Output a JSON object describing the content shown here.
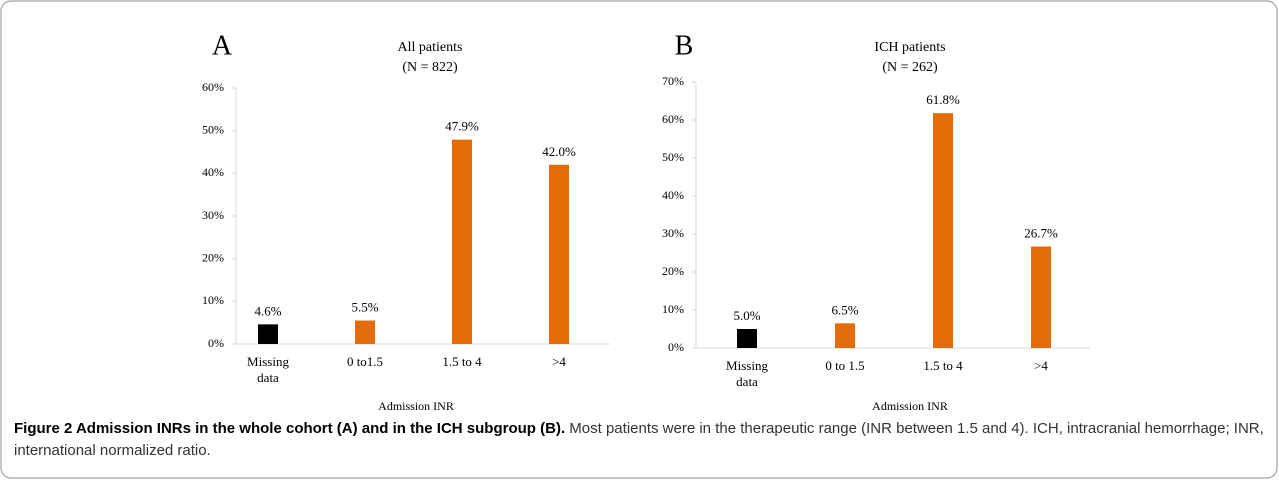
{
  "chart_data": [
    {
      "type": "bar",
      "panel_label": "A",
      "title": "All patients",
      "subtitle": "(N = 822)",
      "x_label": "Admission INR",
      "categories": [
        "Missing data",
        "0 to1.5",
        "1.5 to 4",
        ">4"
      ],
      "values": [
        4.6,
        5.5,
        47.9,
        42.0
      ],
      "value_labels": [
        "4.6%",
        "5.5%",
        "47.9%",
        "42.0%"
      ],
      "colors": [
        "#000000",
        "#e36c09",
        "#e36c09",
        "#e36c09"
      ],
      "ylim": [
        0,
        60
      ],
      "yticks": [
        {
          "value": 0,
          "label": "0%"
        },
        {
          "value": 10,
          "label": "10%"
        },
        {
          "value": 20,
          "label": "20%"
        },
        {
          "value": 30,
          "label": "30%"
        },
        {
          "value": 40,
          "label": "40%"
        },
        {
          "value": 50,
          "label": "50%"
        },
        {
          "value": 60,
          "label": "60%"
        }
      ]
    },
    {
      "type": "bar",
      "panel_label": "B",
      "title": "ICH patients",
      "subtitle": "(N = 262)",
      "x_label": "Admission INR",
      "categories": [
        "Missing data",
        "0 to 1.5",
        "1.5 to 4",
        ">4"
      ],
      "values": [
        5.0,
        6.5,
        61.8,
        26.7
      ],
      "value_labels": [
        "5.0%",
        "6.5%",
        "61.8%",
        "26.7%"
      ],
      "colors": [
        "#000000",
        "#e36c09",
        "#e36c09",
        "#e36c09"
      ],
      "ylim": [
        0,
        70
      ],
      "yticks": [
        {
          "value": 0,
          "label": "0%"
        },
        {
          "value": 10,
          "label": "10%"
        },
        {
          "value": 20,
          "label": "20%"
        },
        {
          "value": 30,
          "label": "30%"
        },
        {
          "value": 40,
          "label": "40%"
        },
        {
          "value": 50,
          "label": "50%"
        },
        {
          "value": 60,
          "label": "60%"
        },
        {
          "value": 70,
          "label": "70%"
        }
      ]
    }
  ],
  "caption": {
    "title": "Figure 2 Admission INRs in the whole cohort (A) and in the ICH subgroup (B).",
    "text": "Most patients were in the therapeutic range (INR between 1.5 and 4). ICH, intracranial hemorrhage; INR, international normalized ratio."
  }
}
